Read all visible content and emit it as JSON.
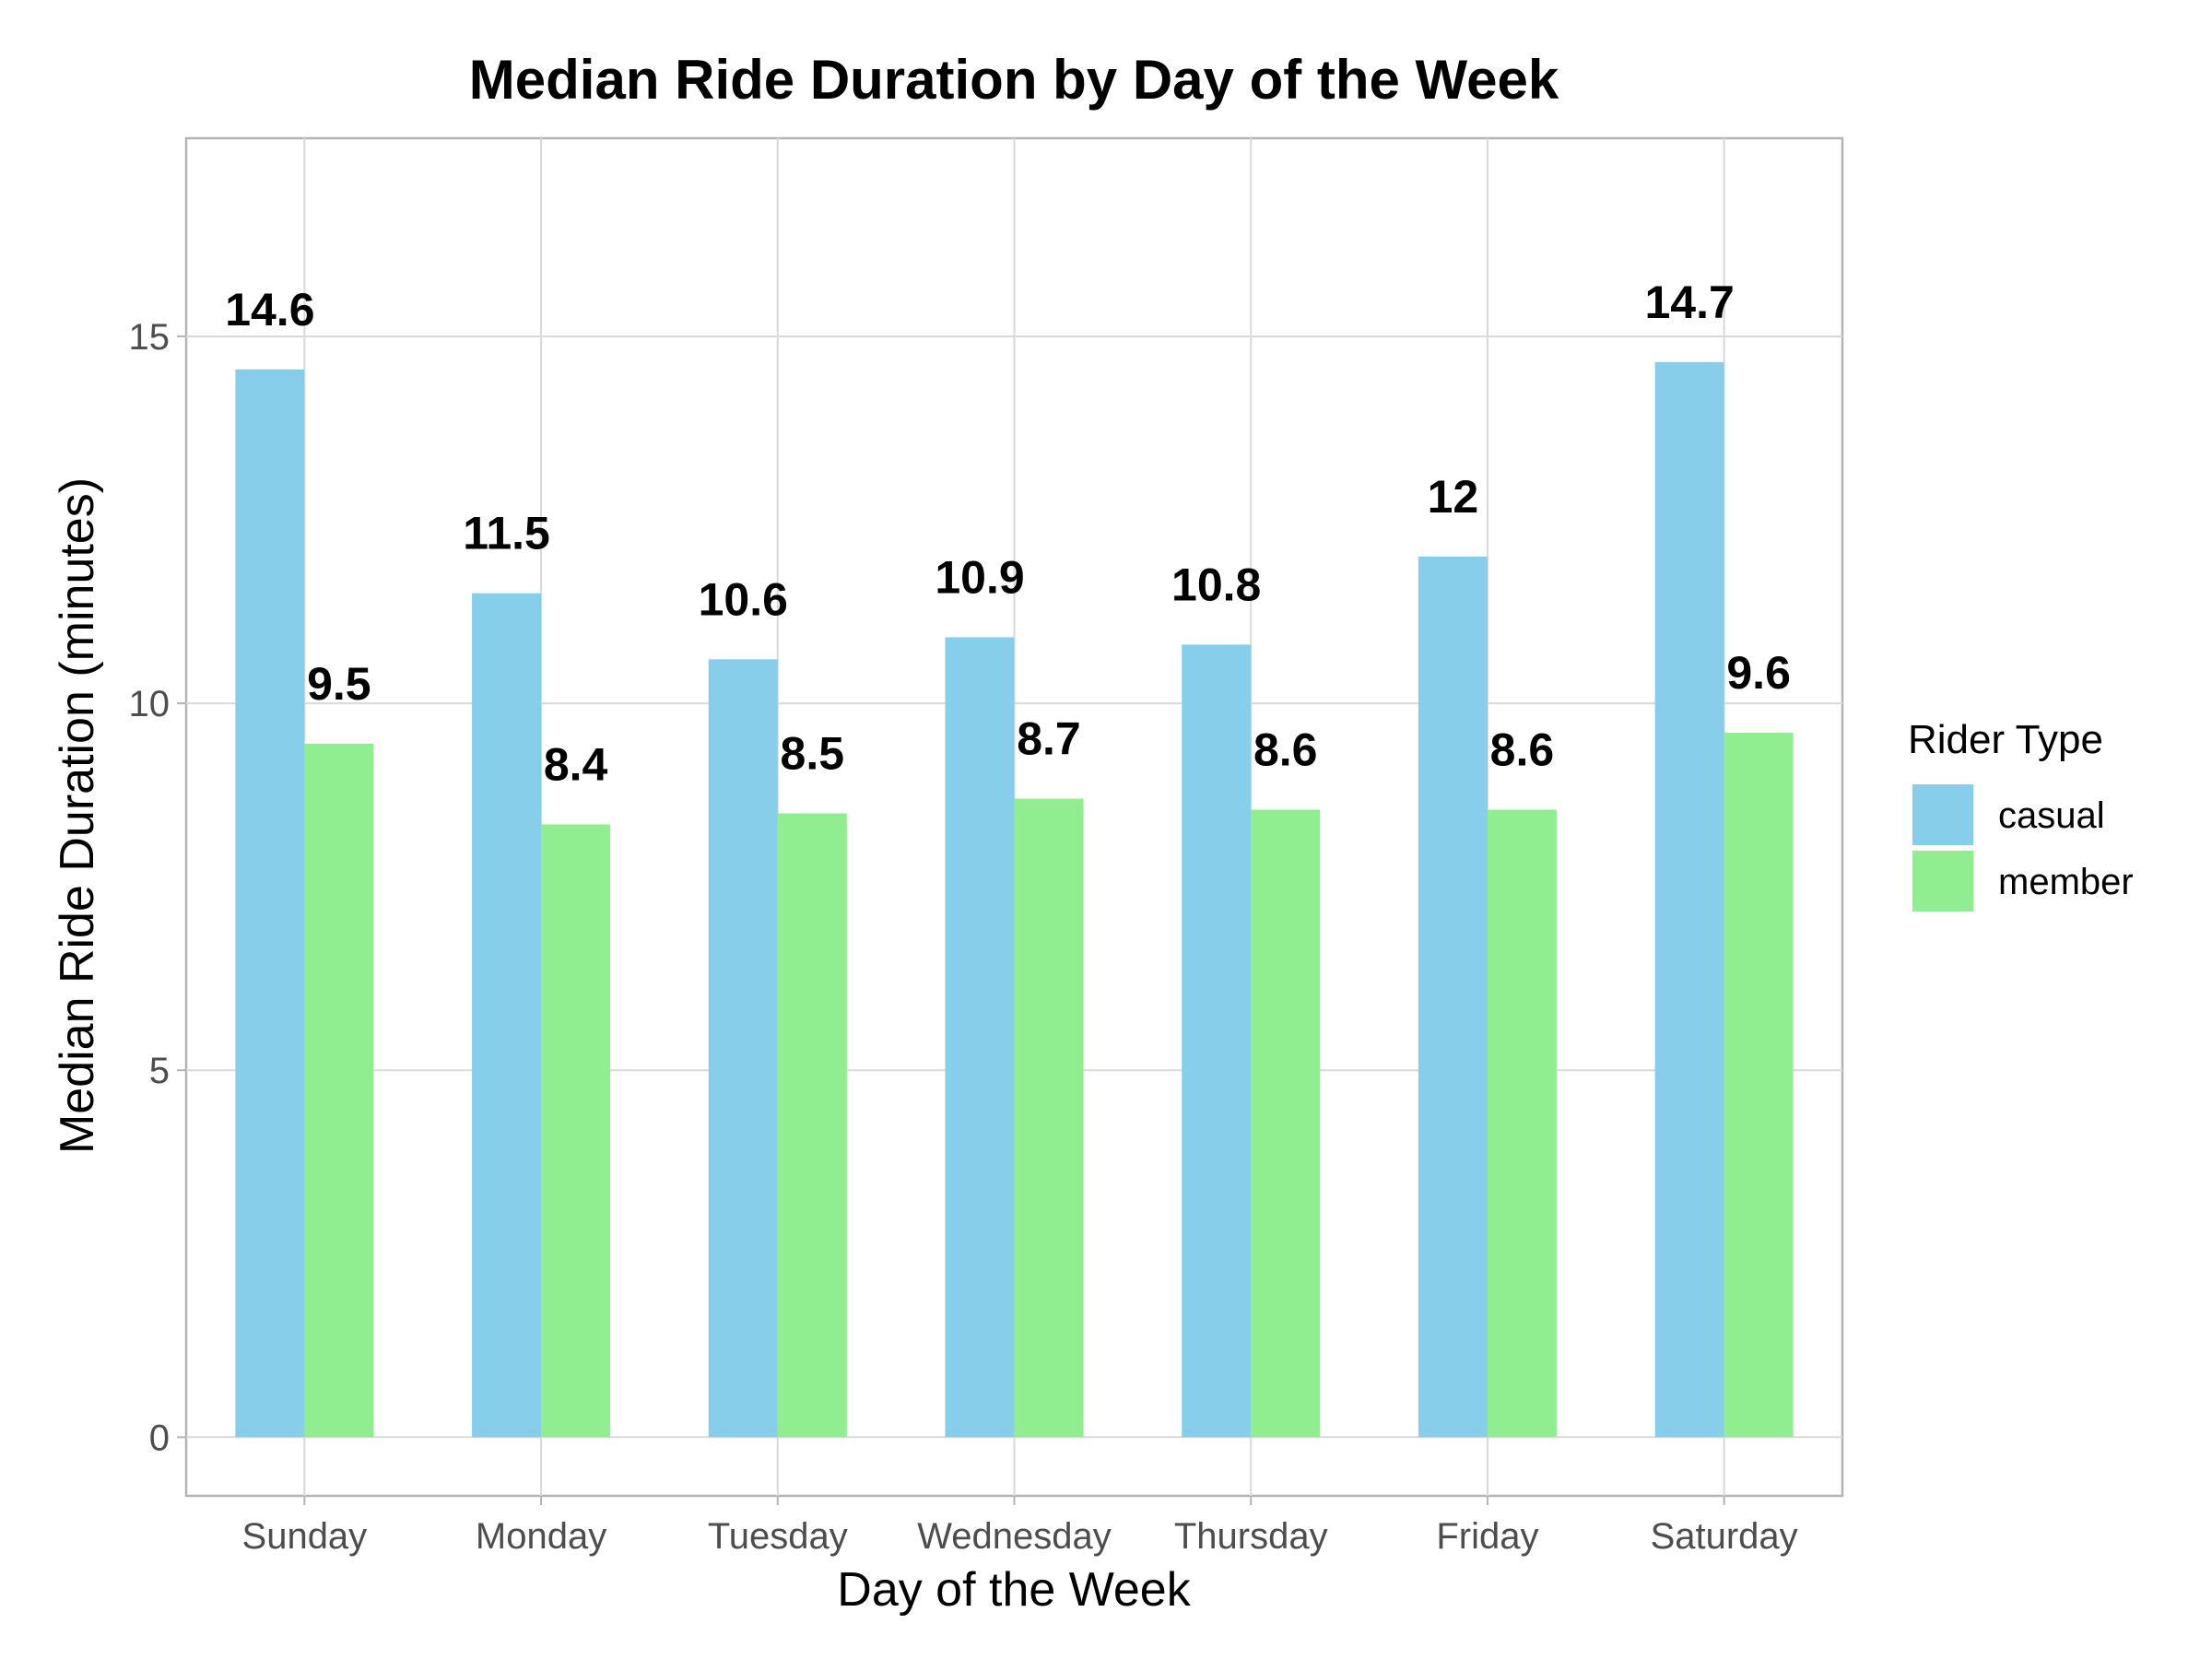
{
  "chart_data": {
    "type": "bar",
    "title": "Median Ride Duration by Day of the Week",
    "xlabel": "Day of the Week",
    "ylabel": "Median Ride Duration (minutes)",
    "categories": [
      "Sunday",
      "Monday",
      "Tuesday",
      "Wednesday",
      "Thursday",
      "Friday",
      "Saturday"
    ],
    "series": [
      {
        "name": "casual",
        "color": "#87CEEB",
        "values": [
          14.55,
          11.5,
          10.6,
          10.9,
          10.8,
          12.0,
          14.65
        ],
        "labels": [
          "14.6",
          "11.5",
          "10.6",
          "10.9",
          "10.8",
          "12",
          "14.7"
        ]
      },
      {
        "name": "member",
        "color": "#90EE90",
        "values": [
          9.45,
          8.35,
          8.5,
          8.7,
          8.55,
          8.55,
          9.6
        ],
        "labels": [
          "9.5",
          "8.4",
          "8.5",
          "8.7",
          "8.6",
          "8.6",
          "9.6"
        ]
      }
    ],
    "ylim": [
      -0.8,
      17.7
    ],
    "yticks": [
      0,
      5,
      10,
      15
    ],
    "grid": true,
    "legend": {
      "title": "Rider Type",
      "position": "right"
    }
  }
}
